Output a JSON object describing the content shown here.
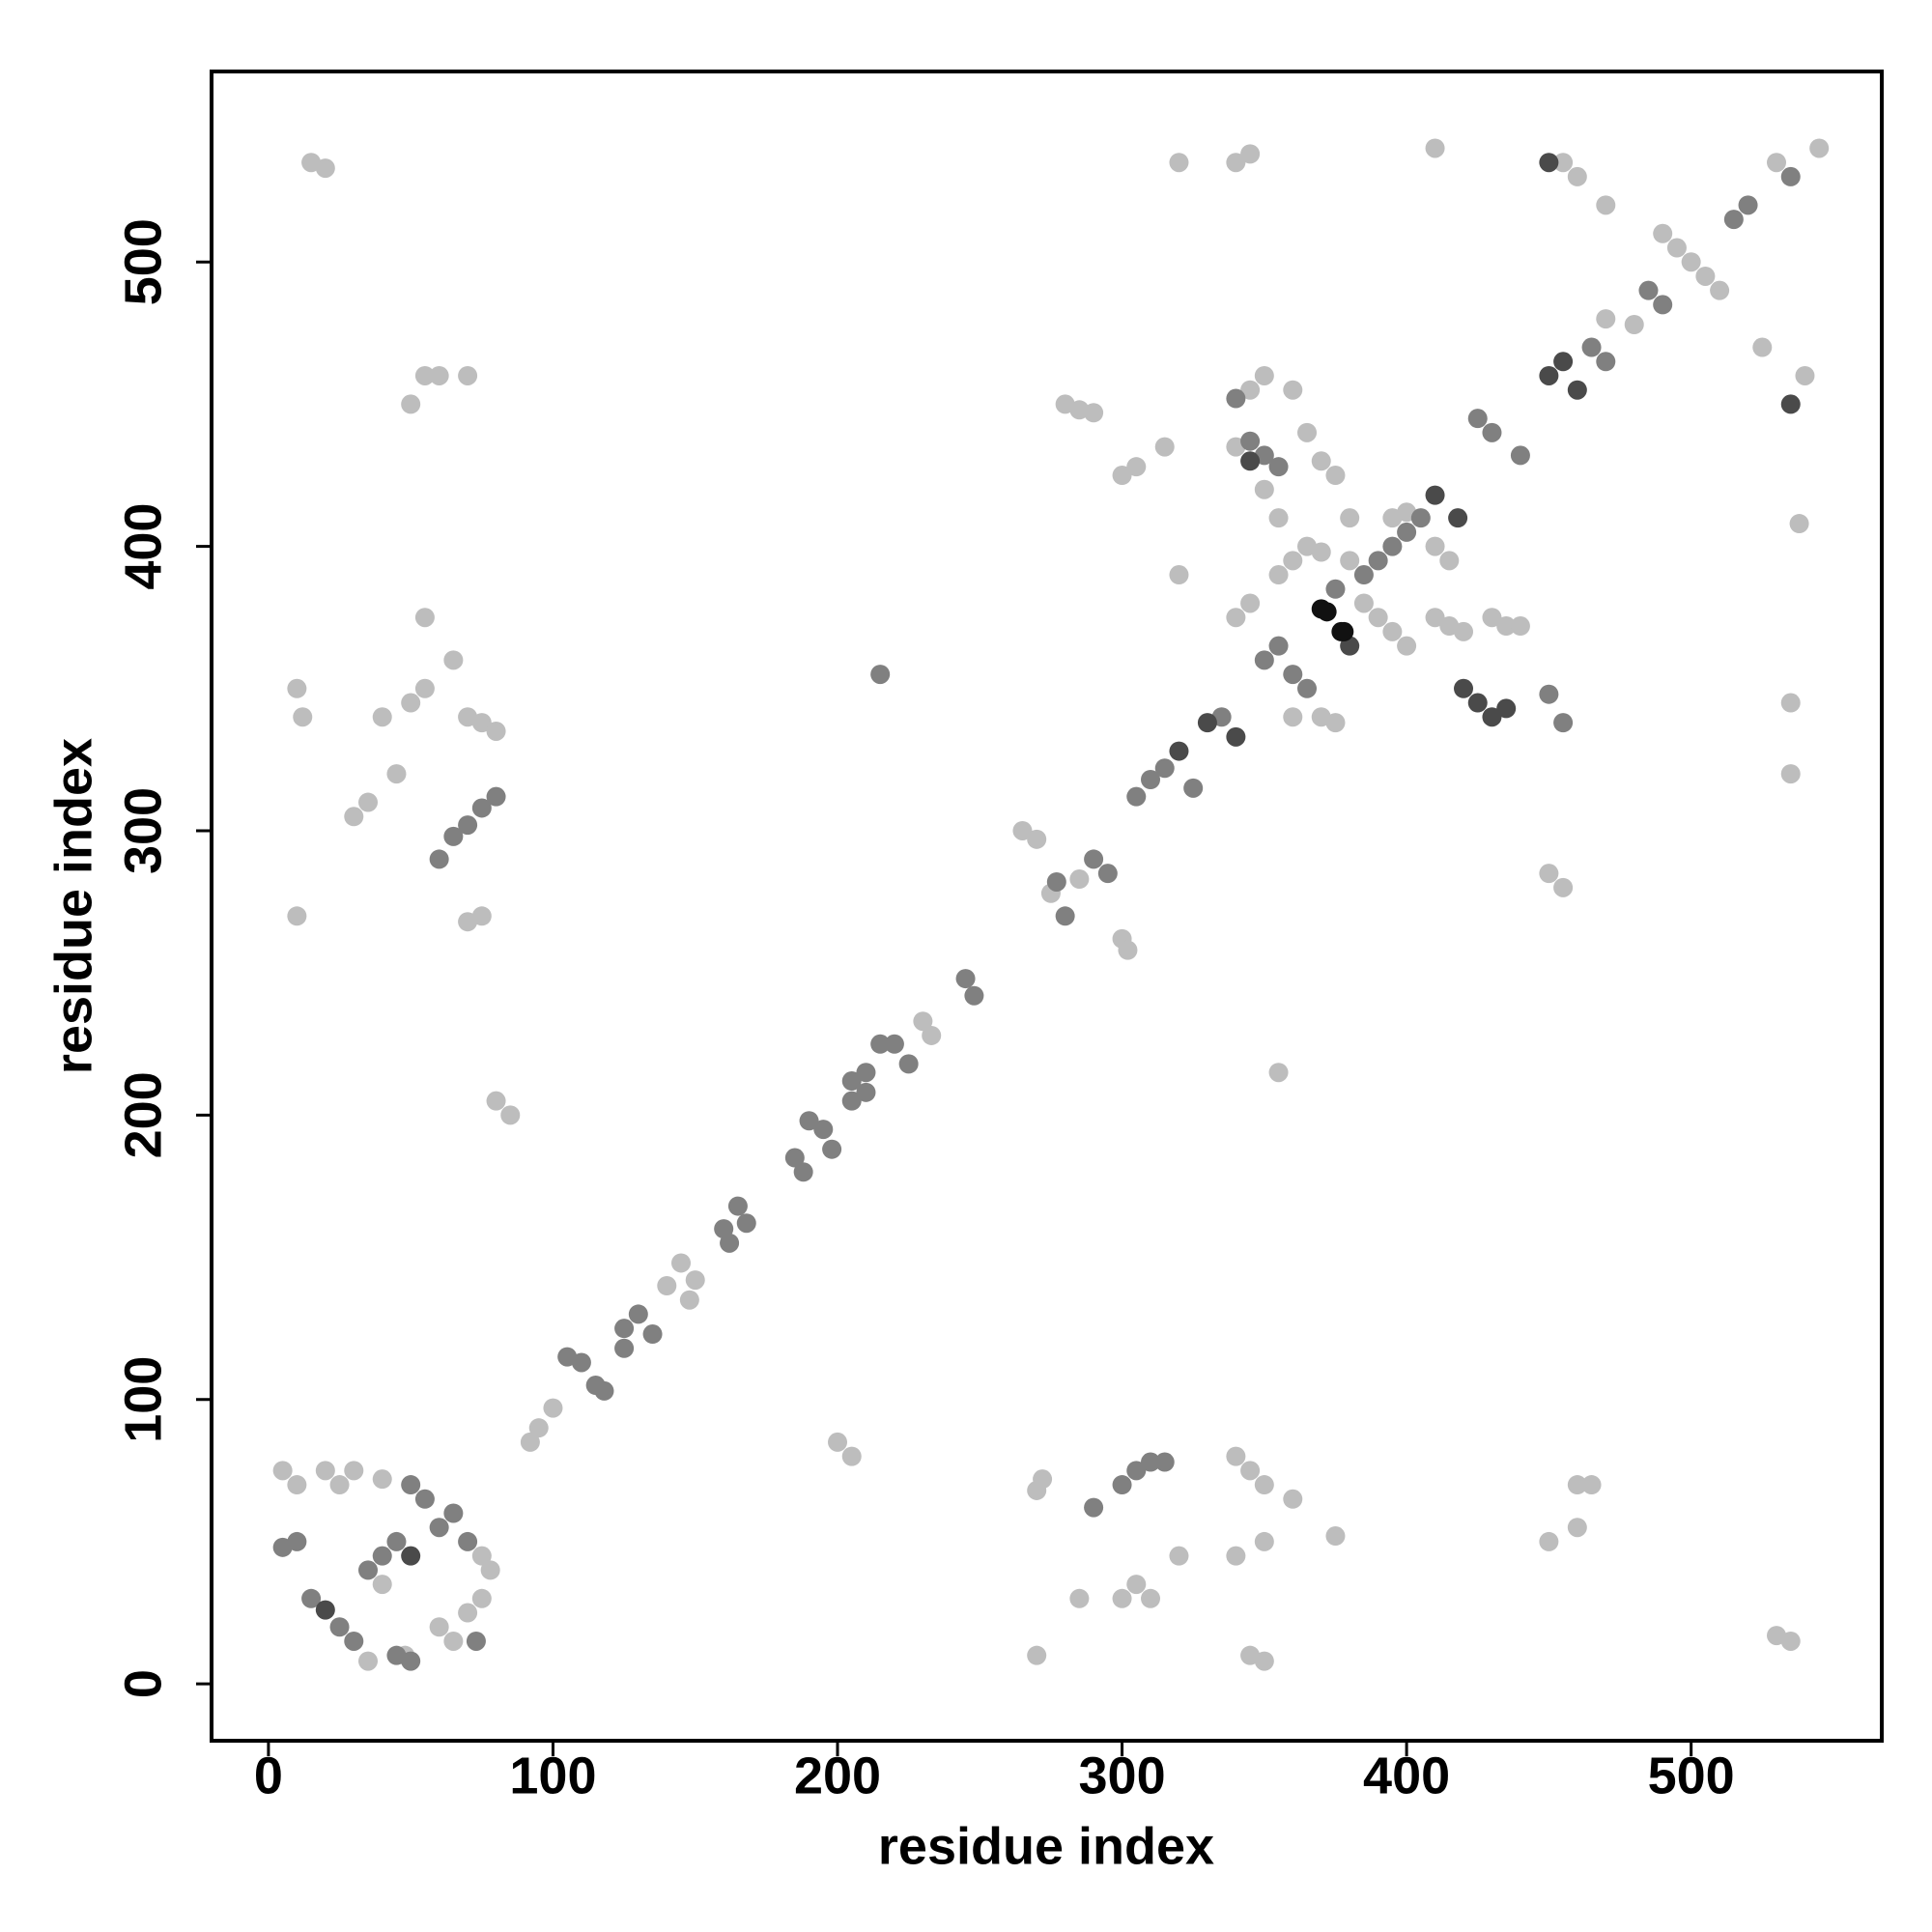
{
  "chart_data": {
    "type": "scatter",
    "x_label": "residue index",
    "y_label": "residue index",
    "xlim": [
      -20,
      567
    ],
    "ylim": [
      -20,
      567
    ],
    "xticks": [
      0,
      100,
      200,
      300,
      400,
      500
    ],
    "yticks": [
      0,
      100,
      200,
      300,
      400,
      500
    ],
    "grid": false,
    "series": [
      {
        "color": "#bdbdbd",
        "x": [
          92,
          95,
          100,
          140,
          148,
          145,
          150,
          230,
          233,
          265,
          270,
          300,
          302,
          275,
          285,
          10,
          12,
          10,
          15,
          20,
          30,
          35,
          45,
          40,
          50,
          55,
          55,
          65,
          70,
          75,
          80,
          70,
          75,
          50,
          55,
          60,
          70,
          80,
          85,
          270,
          272,
          300,
          305,
          310,
          285,
          270,
          340,
          345,
          350,
          340,
          350,
          345,
          350,
          200,
          205,
          320,
          360,
          375,
          355,
          320,
          340,
          345,
          410,
          455,
          460,
          470,
          545,
          530,
          280,
          285,
          290,
          300,
          305,
          315,
          320,
          345,
          350,
          360,
          450,
          455,
          535,
          535,
          538,
          530,
          535,
          450,
          460,
          465,
          460,
          5,
          10,
          20,
          30,
          40,
          25,
          60,
          65,
          70,
          75,
          78,
          75,
          40,
          35,
          48,
          360,
          365,
          370,
          380,
          385,
          390,
          395,
          400,
          355,
          345,
          340,
          360,
          370,
          375,
          340,
          350,
          355,
          365,
          370,
          375,
          380,
          395,
          400,
          410,
          415,
          410,
          415,
          420,
          430,
          435,
          440,
          480,
          490,
          495,
          500,
          505,
          510,
          470,
          525,
          540
        ],
        "y": [
          85,
          90,
          97,
          140,
          135,
          148,
          142,
          233,
          228,
          300,
          297,
          262,
          258,
          278,
          283,
          350,
          340,
          270,
          535,
          533,
          305,
          310,
          320,
          340,
          345,
          350,
          375,
          360,
          340,
          338,
          335,
          268,
          270,
          450,
          460,
          460,
          460,
          205,
          200,
          68,
          72,
          30,
          35,
          30,
          30,
          10,
          80,
          75,
          70,
          45,
          50,
          10,
          8,
          85,
          80,
          45,
          65,
          52,
          215,
          535,
          535,
          538,
          540,
          535,
          530,
          520,
          540,
          535,
          450,
          448,
          447,
          425,
          428,
          435,
          390,
          455,
          460,
          455,
          285,
          280,
          345,
          320,
          408,
          17,
          15,
          50,
          55,
          70,
          70,
          75,
          70,
          75,
          75,
          72,
          70,
          20,
          15,
          25,
          30,
          40,
          45,
          35,
          8,
          10,
          395,
          400,
          398,
          395,
          380,
          375,
          370,
          365,
          390,
          380,
          375,
          340,
          340,
          338,
          435,
          420,
          410,
          440,
          430,
          425,
          410,
          410,
          412,
          400,
          395,
          375,
          372,
          370,
          375,
          372,
          372,
          478,
          510,
          505,
          500,
          495,
          490,
          480,
          470,
          460
        ]
      },
      {
        "color": "#808080",
        "x": [
          105,
          110,
          115,
          118,
          125,
          130,
          125,
          135,
          160,
          165,
          162,
          168,
          185,
          190,
          195,
          198,
          188,
          205,
          210,
          215,
          220,
          205,
          210,
          225,
          245,
          248,
          280,
          290,
          295,
          277,
          305,
          310,
          315,
          325,
          335,
          60,
          65,
          70,
          75,
          80,
          290,
          300,
          305,
          310,
          315,
          215,
          535,
          340,
          455,
          450,
          10,
          5,
          15,
          25,
          30,
          45,
          50,
          60,
          65,
          70,
          55,
          50,
          35,
          40,
          45,
          73,
          350,
          355,
          360,
          365,
          375,
          385,
          390,
          395,
          400,
          405,
          345,
          350,
          355,
          425,
          430,
          440,
          465,
          470,
          485,
          515,
          520,
          490
        ],
        "y": [
          115,
          113,
          105,
          103,
          125,
          130,
          118,
          123,
          160,
          168,
          155,
          162,
          185,
          198,
          195,
          188,
          180,
          212,
          215,
          225,
          225,
          205,
          208,
          218,
          248,
          242,
          270,
          290,
          285,
          282,
          312,
          318,
          322,
          315,
          340,
          290,
          298,
          302,
          308,
          312,
          62,
          70,
          75,
          78,
          78,
          355,
          530,
          452,
          338,
          348,
          50,
          48,
          30,
          20,
          15,
          10,
          8,
          55,
          60,
          50,
          65,
          70,
          40,
          45,
          50,
          15,
          360,
          365,
          355,
          350,
          385,
          390,
          395,
          400,
          405,
          410,
          437,
          432,
          428,
          445,
          440,
          432,
          470,
          465,
          490,
          515,
          520,
          485
        ]
      },
      {
        "color": "#4a4a4a",
        "x": [
          320,
          330,
          340,
          20,
          50,
          450,
          535,
          425,
          430,
          420,
          435,
          450,
          455,
          460,
          410,
          418,
          345,
          380
        ],
        "y": [
          328,
          338,
          333,
          26,
          45,
          535,
          450,
          345,
          340,
          350,
          343,
          460,
          465,
          455,
          418,
          410,
          430,
          365
        ]
      },
      {
        "color": "#111111",
        "x": [
          370,
          372,
          378,
          377
        ],
        "y": [
          378,
          377,
          370,
          370
        ]
      }
    ]
  }
}
